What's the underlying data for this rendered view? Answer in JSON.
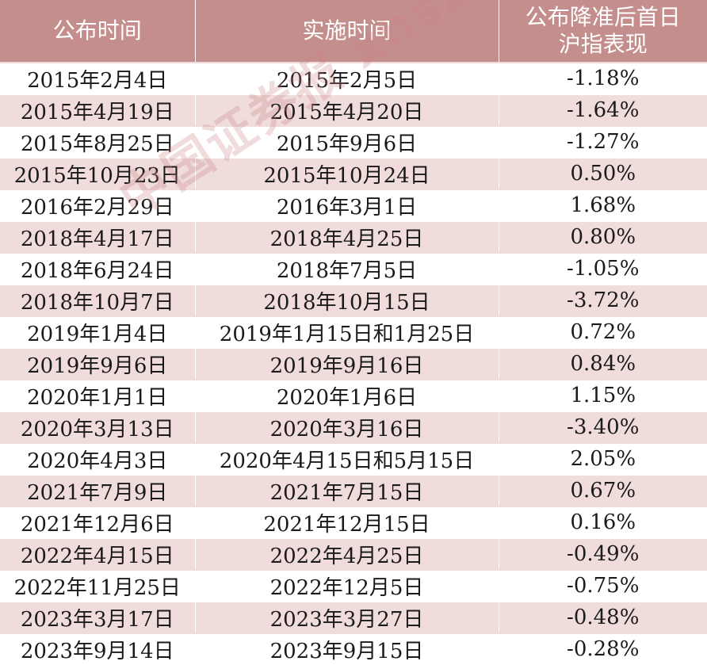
{
  "table": {
    "headers": {
      "announce": "公布时间",
      "implement": "实施时间",
      "index_line1": "公布降准后首日",
      "index_line2": "沪指表现"
    },
    "rows": [
      {
        "announce": "2015年2月4日",
        "implement": "2015年2月5日",
        "change": "-1.18%"
      },
      {
        "announce": "2015年4月19日",
        "implement": "2015年4月20日",
        "change": "-1.64%"
      },
      {
        "announce": "2015年8月25日",
        "implement": "2015年9月6日",
        "change": "-1.27%"
      },
      {
        "announce": "2015年10月23日",
        "implement": "2015年10月24日",
        "change": "0.50%"
      },
      {
        "announce": "2016年2月29日",
        "implement": "2016年3月1日",
        "change": "1.68%"
      },
      {
        "announce": "2018年4月17日",
        "implement": "2018年4月25日",
        "change": "0.80%"
      },
      {
        "announce": "2018年6月24日",
        "implement": "2018年7月5日",
        "change": "-1.05%"
      },
      {
        "announce": "2018年10月7日",
        "implement": "2018年10月15日",
        "change": "-3.72%"
      },
      {
        "announce": "2019年1月4日",
        "implement": "2019年1月15日和1月25日",
        "change": "0.72%"
      },
      {
        "announce": "2019年9月6日",
        "implement": "2019年9月16日",
        "change": "0.84%"
      },
      {
        "announce": "2020年1月1日",
        "implement": "2020年1月6日",
        "change": "1.15%"
      },
      {
        "announce": "2020年3月13日",
        "implement": "2020年3月16日",
        "change": "-3.40%"
      },
      {
        "announce": "2020年4月3日",
        "implement": "2020年4月15日和5月15日",
        "change": "2.05%"
      },
      {
        "announce": "2021年7月9日",
        "implement": "2021年7月15日",
        "change": "0.67%"
      },
      {
        "announce": "2021年12月6日",
        "implement": "2021年12月15日",
        "change": "0.16%"
      },
      {
        "announce": "2022年4月15日",
        "implement": "2022年4月25日",
        "change": "-0.49%"
      },
      {
        "announce": "2022年11月25日",
        "implement": "2022年12月5日",
        "change": "-0.75%"
      },
      {
        "announce": "2023年3月17日",
        "implement": "2023年3月27日",
        "change": "-0.48%"
      },
      {
        "announce": "2023年9月14日",
        "implement": "2023年9月15日",
        "change": "-0.28%"
      }
    ]
  },
  "watermark": {
    "text": "中国证券报 xhszzb"
  },
  "colors": {
    "header_bg": "#c48e8c",
    "stripe_bg": "#f0dcdb"
  }
}
